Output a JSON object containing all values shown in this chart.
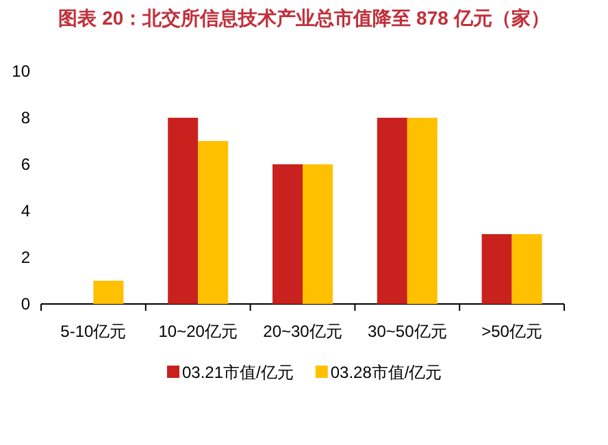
{
  "chart_data": {
    "type": "bar",
    "title": "图表 20：北交所信息技术产业总市值降至 878 亿元（家）",
    "categories": [
      "5-10亿元",
      "10~20亿元",
      "20~30亿元",
      "30~50亿元",
      ">50亿元"
    ],
    "series": [
      {
        "name": "03.21市值/亿元",
        "color": "#c9211e",
        "values": [
          0,
          8,
          6,
          8,
          3
        ]
      },
      {
        "name": "03.28市值/亿元",
        "color": "#ffc000",
        "values": [
          1,
          7,
          6,
          8,
          3
        ]
      }
    ],
    "ylim": [
      0,
      10
    ],
    "yticks": [
      0,
      2,
      4,
      6,
      8,
      10
    ],
    "grid": false,
    "legend": "bottom"
  }
}
